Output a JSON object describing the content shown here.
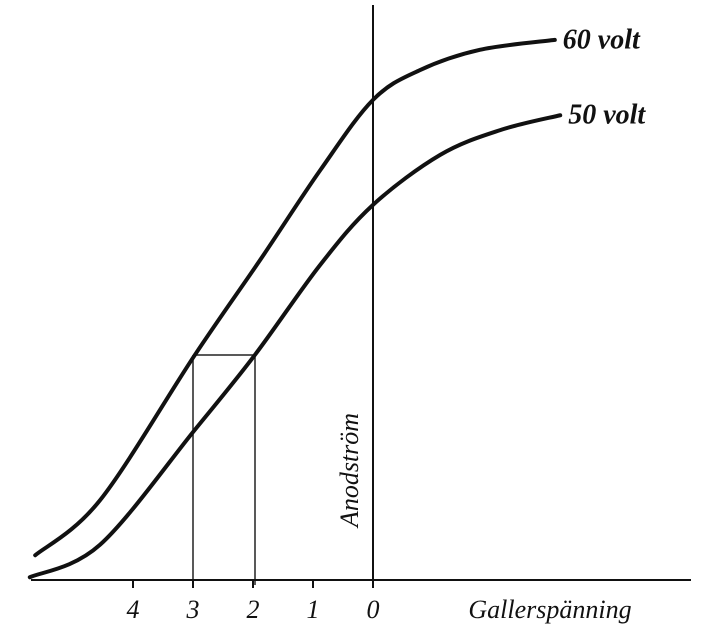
{
  "chart_data": {
    "type": "line",
    "x_label": "Gallerspänning",
    "y_label": "Anodström",
    "xlim": [
      -5.7,
      5.3
    ],
    "ylim": [
      0,
      100
    ],
    "xticks": [
      {
        "value": -4,
        "label": "4"
      },
      {
        "value": -3,
        "label": "3"
      },
      {
        "value": -2,
        "label": "2"
      },
      {
        "value": -1,
        "label": "1"
      },
      0
    ],
    "color": "#111111",
    "series": [
      {
        "name": "60 volt",
        "x": [
          -5.63,
          -4.55,
          -2.97,
          -1.88,
          -0.88,
          0,
          0.78,
          1.78,
          3.03
        ],
        "values": [
          4.5,
          14.5,
          40.9,
          58.2,
          74.5,
          87.3,
          92.7,
          96.4,
          98.2
        ]
      },
      {
        "name": "50 volt",
        "x": [
          -5.72,
          -4.55,
          -2.97,
          -1.97,
          -0.88,
          0,
          1.12,
          2.12,
          3.12
        ],
        "values": [
          0.5,
          6.4,
          27.3,
          40.9,
          57.3,
          68.2,
          77.3,
          81.8,
          84.5
        ]
      }
    ]
  }
}
